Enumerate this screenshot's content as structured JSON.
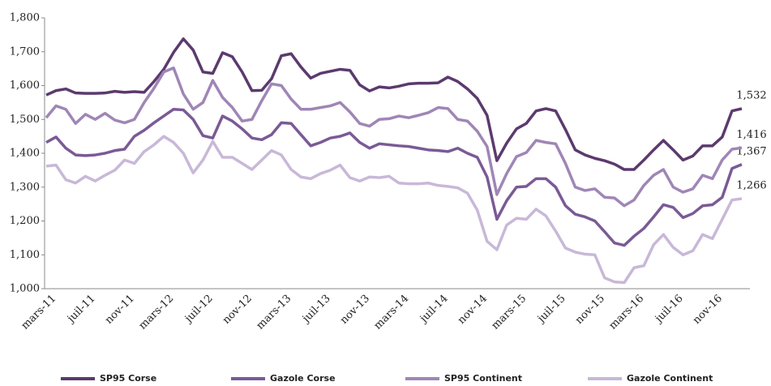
{
  "chart_data": {
    "type": "line",
    "categories": [
      "mars-11",
      null,
      null,
      null,
      "juil-11",
      null,
      null,
      null,
      "nov-11",
      null,
      null,
      null,
      "mars-12",
      null,
      null,
      null,
      "juil-12",
      null,
      null,
      null,
      "nov-12",
      null,
      null,
      null,
      "mars-13",
      null,
      null,
      null,
      "juil-13",
      null,
      null,
      null,
      "nov-13",
      null,
      null,
      null,
      "mars-14",
      null,
      null,
      null,
      "juil-14",
      null,
      null,
      null,
      "nov-14",
      null,
      null,
      null,
      "mars-15",
      null,
      null,
      null,
      "juil-15",
      null,
      null,
      null,
      "nov-15",
      null,
      null,
      null,
      "mars-16",
      null,
      null,
      null,
      "juil-16",
      null,
      null,
      null,
      "nov-16",
      null,
      null,
      null
    ],
    "series": [
      {
        "name": "SP95 Corse",
        "color": "#5b3a6e",
        "values": [
          1572,
          1585,
          1590,
          1578,
          1577,
          1577,
          1578,
          1583,
          1580,
          1582,
          1580,
          1612,
          1648,
          1698,
          1738,
          1705,
          1640,
          1636,
          1697,
          1685,
          1640,
          1585,
          1586,
          1620,
          1688,
          1694,
          1655,
          1622,
          1636,
          1642,
          1648,
          1645,
          1602,
          1584,
          1596,
          1593,
          1598,
          1605,
          1607,
          1607,
          1608,
          1625,
          1612,
          1590,
          1562,
          1512,
          1378,
          1430,
          1472,
          1488,
          1525,
          1532,
          1525,
          1470,
          1410,
          1395,
          1385,
          1378,
          1368,
          1352,
          1352,
          1380,
          1410,
          1438,
          1410,
          1380,
          1392,
          1422,
          1422,
          1448,
          1525,
          1532
        ],
        "value_labels": [
          null,
          null,
          null,
          null,
          null,
          null,
          null,
          null,
          null,
          null,
          null,
          null,
          null,
          null,
          null,
          null,
          null,
          null,
          null,
          null,
          null,
          null,
          null,
          null,
          null,
          null,
          null,
          null,
          null,
          null,
          null,
          null,
          null,
          null,
          null,
          null,
          null,
          null,
          null,
          null,
          null,
          null,
          null,
          null,
          null,
          null,
          null,
          null,
          null,
          null,
          null,
          null,
          null,
          null,
          null,
          null,
          null,
          null,
          null,
          null,
          null,
          null,
          null,
          null,
          null,
          null,
          null,
          null,
          null,
          null,
          null,
          "1,532"
        ]
      },
      {
        "name": "Gazole Corse",
        "color": "#7a5a96",
        "values": [
          1432,
          1448,
          1415,
          1395,
          1393,
          1395,
          1400,
          1408,
          1412,
          1450,
          1468,
          1490,
          1510,
          1530,
          1528,
          1500,
          1452,
          1445,
          1510,
          1495,
          1472,
          1445,
          1440,
          1455,
          1490,
          1488,
          1455,
          1422,
          1432,
          1445,
          1450,
          1460,
          1432,
          1415,
          1428,
          1425,
          1422,
          1420,
          1415,
          1410,
          1408,
          1405,
          1415,
          1400,
          1388,
          1330,
          1205,
          1260,
          1300,
          1302,
          1325,
          1325,
          1300,
          1245,
          1220,
          1212,
          1200,
          1168,
          1135,
          1128,
          1155,
          1178,
          1212,
          1248,
          1240,
          1210,
          1222,
          1245,
          1248,
          1270,
          1355,
          1367
        ],
        "value_labels": [
          null,
          null,
          null,
          null,
          null,
          null,
          null,
          null,
          null,
          null,
          null,
          null,
          null,
          null,
          null,
          null,
          null,
          null,
          null,
          null,
          null,
          null,
          null,
          null,
          null,
          null,
          null,
          null,
          null,
          null,
          null,
          null,
          null,
          null,
          null,
          null,
          null,
          null,
          null,
          null,
          null,
          null,
          null,
          null,
          null,
          null,
          null,
          null,
          null,
          null,
          null,
          null,
          null,
          null,
          null,
          null,
          null,
          null,
          null,
          null,
          null,
          null,
          null,
          null,
          null,
          null,
          null,
          null,
          null,
          null,
          null,
          "1,367"
        ]
      },
      {
        "name": "SP95 Continent",
        "color": "#9f86b6",
        "values": [
          1505,
          1540,
          1530,
          1488,
          1515,
          1500,
          1518,
          1498,
          1490,
          1500,
          1550,
          1592,
          1640,
          1652,
          1575,
          1530,
          1550,
          1615,
          1565,
          1535,
          1495,
          1500,
          1555,
          1605,
          1600,
          1560,
          1530,
          1530,
          1535,
          1540,
          1550,
          1522,
          1488,
          1480,
          1500,
          1502,
          1510,
          1505,
          1512,
          1520,
          1535,
          1532,
          1500,
          1495,
          1465,
          1420,
          1278,
          1340,
          1390,
          1402,
          1438,
          1432,
          1428,
          1370,
          1300,
          1290,
          1295,
          1270,
          1268,
          1245,
          1262,
          1305,
          1335,
          1352,
          1300,
          1285,
          1295,
          1335,
          1325,
          1380,
          1412,
          1416
        ],
        "value_labels": [
          null,
          null,
          null,
          null,
          null,
          null,
          null,
          null,
          null,
          null,
          null,
          null,
          null,
          null,
          null,
          null,
          null,
          null,
          null,
          null,
          null,
          null,
          null,
          null,
          null,
          null,
          null,
          null,
          null,
          null,
          null,
          null,
          null,
          null,
          null,
          null,
          null,
          null,
          null,
          null,
          null,
          null,
          null,
          null,
          null,
          null,
          null,
          null,
          null,
          null,
          null,
          null,
          null,
          null,
          null,
          null,
          null,
          null,
          null,
          null,
          null,
          null,
          null,
          null,
          null,
          null,
          null,
          null,
          null,
          null,
          null,
          "1,416"
        ]
      },
      {
        "name": "Gazole Continent",
        "color": "#c8b8d8",
        "values": [
          1362,
          1365,
          1322,
          1312,
          1332,
          1318,
          1335,
          1350,
          1380,
          1370,
          1405,
          1425,
          1450,
          1432,
          1400,
          1342,
          1380,
          1435,
          1388,
          1388,
          1370,
          1352,
          1380,
          1408,
          1395,
          1352,
          1330,
          1325,
          1340,
          1350,
          1365,
          1328,
          1318,
          1330,
          1328,
          1332,
          1312,
          1310,
          1310,
          1312,
          1305,
          1302,
          1298,
          1282,
          1232,
          1140,
          1115,
          1188,
          1208,
          1205,
          1235,
          1215,
          1170,
          1120,
          1108,
          1102,
          1100,
          1032,
          1020,
          1018,
          1062,
          1068,
          1130,
          1160,
          1122,
          1100,
          1112,
          1160,
          1148,
          1205,
          1262,
          1266
        ],
        "value_labels": [
          null,
          null,
          null,
          null,
          null,
          null,
          null,
          null,
          null,
          null,
          null,
          null,
          null,
          null,
          null,
          null,
          null,
          null,
          null,
          null,
          null,
          null,
          null,
          null,
          null,
          null,
          null,
          null,
          null,
          null,
          null,
          null,
          null,
          null,
          null,
          null,
          null,
          null,
          null,
          null,
          null,
          null,
          null,
          null,
          null,
          null,
          null,
          null,
          null,
          null,
          null,
          null,
          null,
          null,
          null,
          null,
          null,
          null,
          null,
          null,
          null,
          null,
          null,
          null,
          null,
          null,
          null,
          null,
          null,
          null,
          null,
          "1,266"
        ]
      }
    ],
    "ylim": [
      1000,
      1800
    ],
    "yticks": [
      {
        "value": 1000,
        "label": "1,000"
      },
      {
        "value": 1100,
        "label": "1,100"
      },
      {
        "value": 1200,
        "label": "1,200"
      },
      {
        "value": 1300,
        "label": "1,300"
      },
      {
        "value": 1400,
        "label": "1,400"
      },
      {
        "value": 1500,
        "label": "1,500"
      },
      {
        "value": 1600,
        "label": "1,600"
      },
      {
        "value": 1700,
        "label": "1,700"
      },
      {
        "value": 1800,
        "label": "1,800"
      }
    ],
    "grid": false,
    "legend": "bottom"
  }
}
